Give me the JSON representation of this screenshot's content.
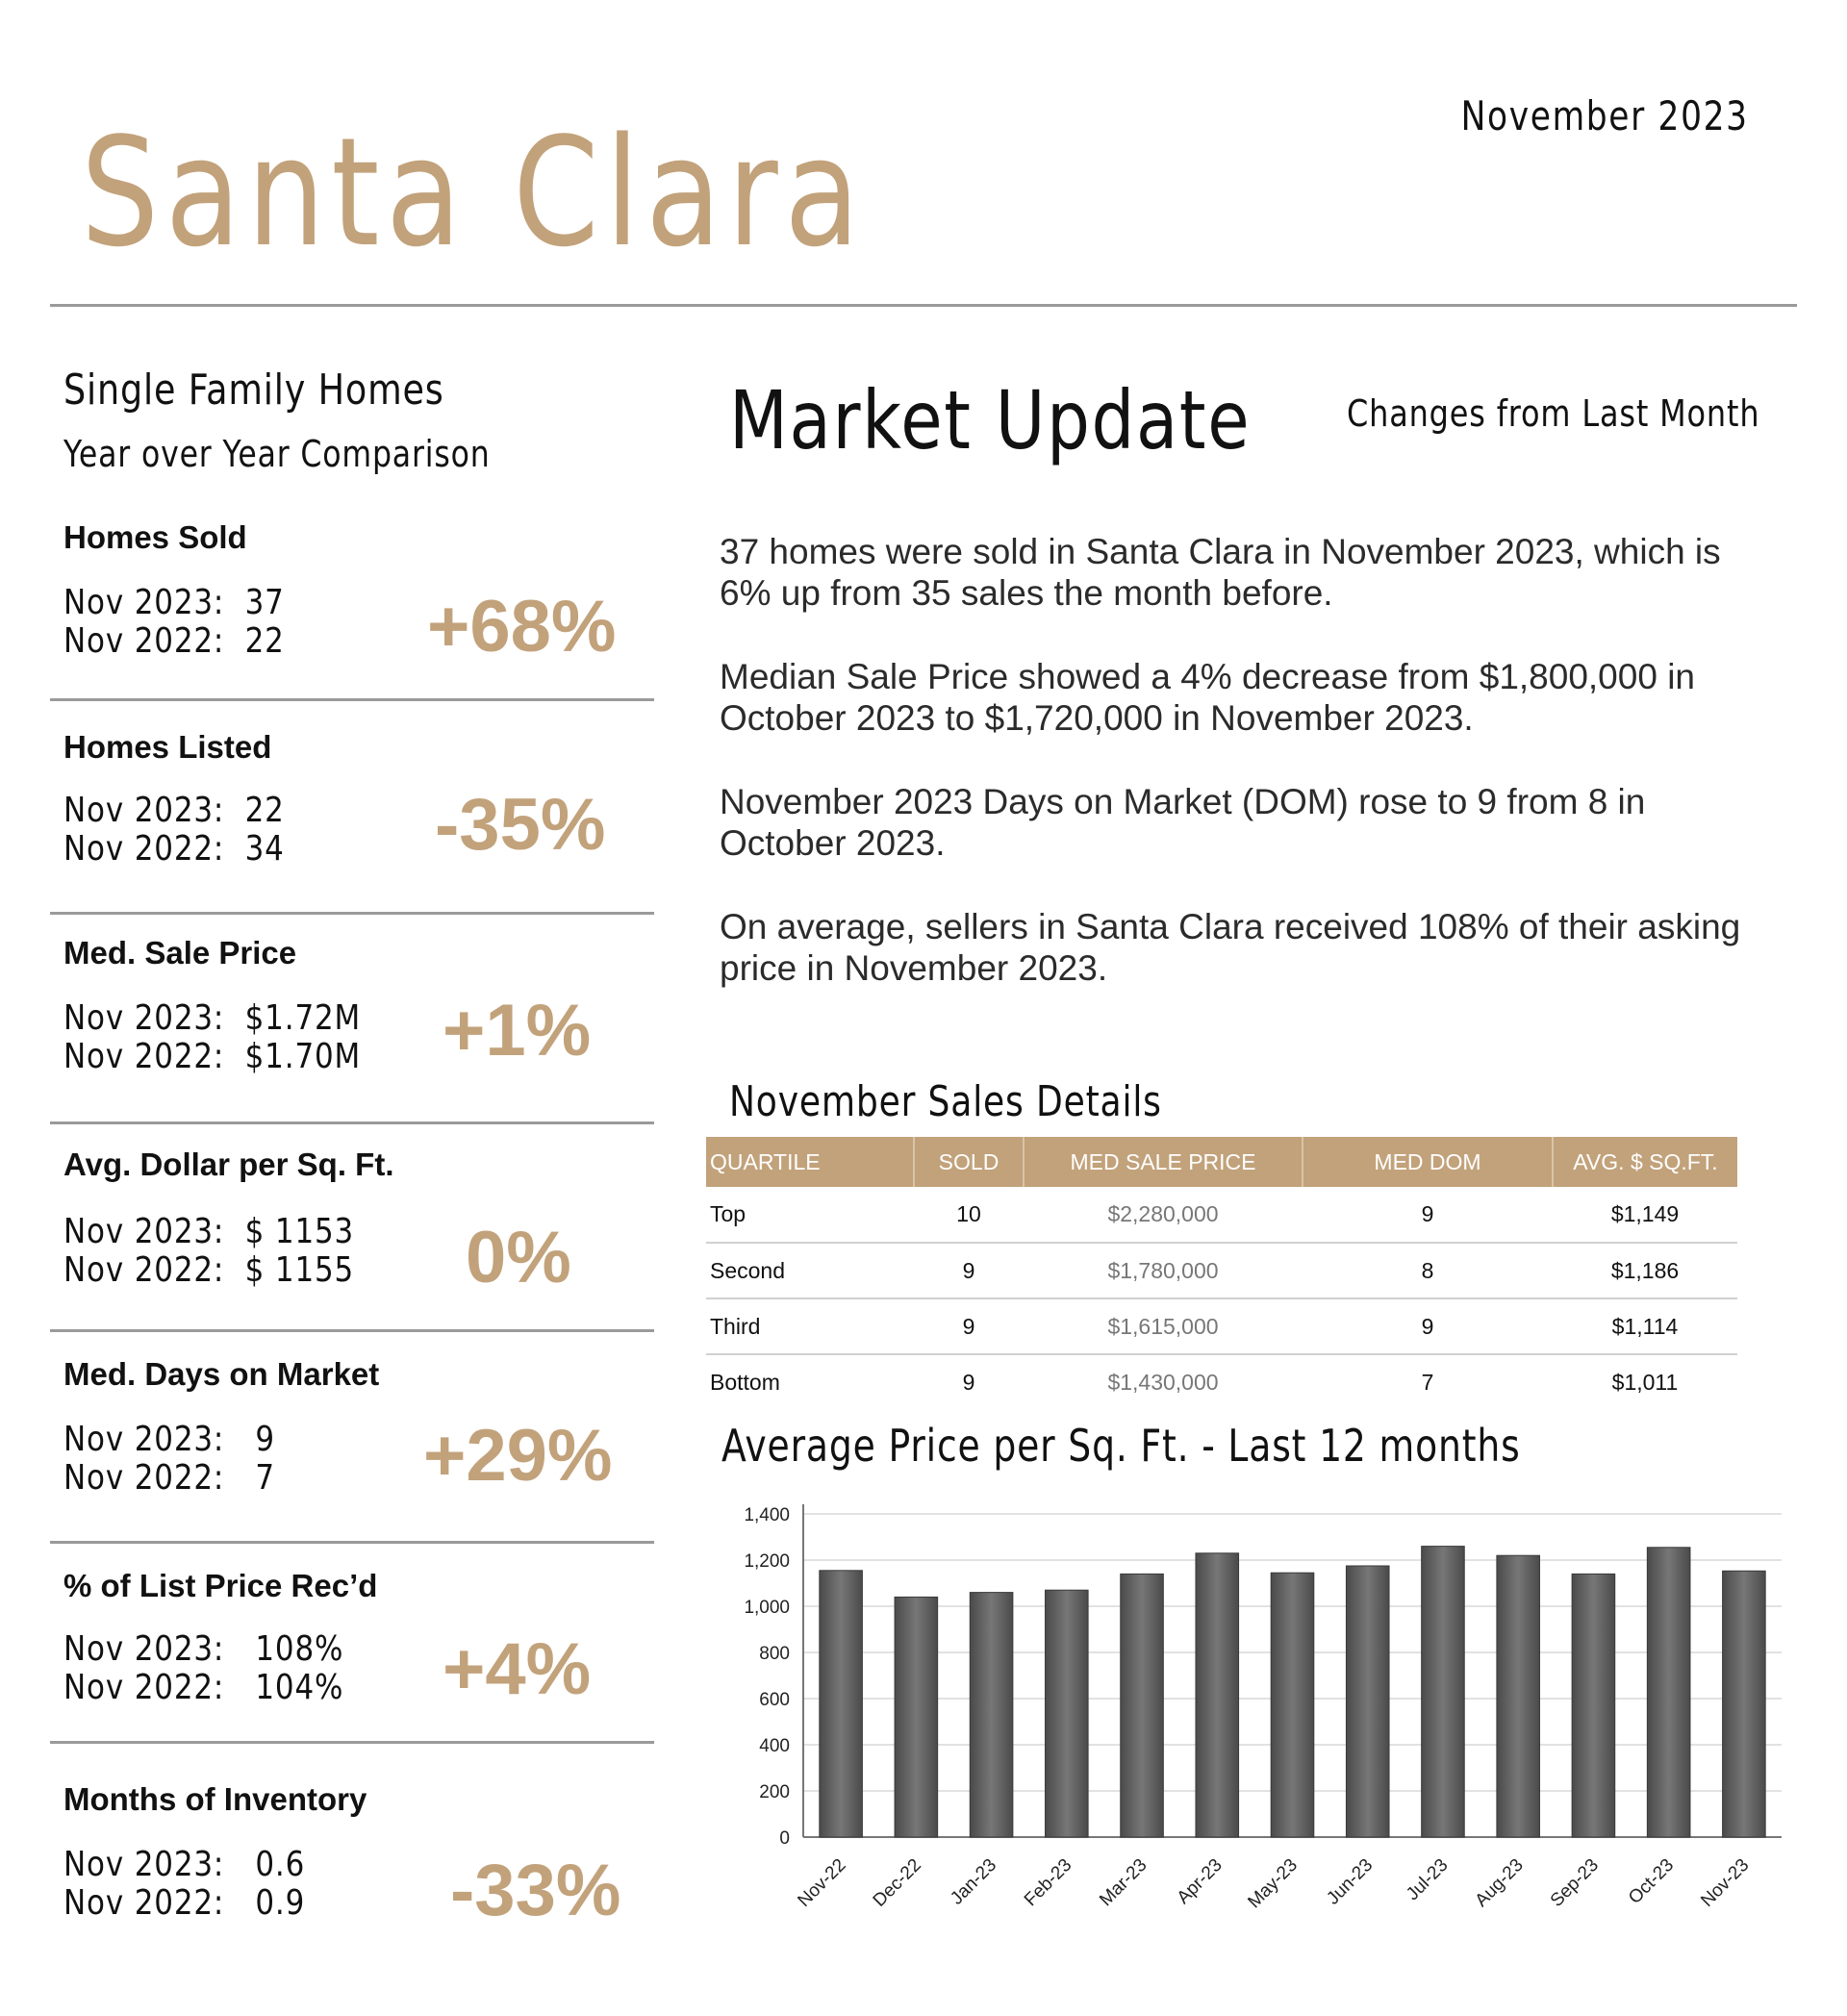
{
  "header": {
    "date": "November 2023",
    "city": "Santa Clara"
  },
  "left": {
    "title": "Single Family Homes",
    "subtitle": "Year over Year Comparison",
    "metrics": [
      {
        "label": "Homes Sold",
        "line1": "Nov 2023:  37",
        "line2": "Nov 2022:  22",
        "change": "+68%"
      },
      {
        "label": "Homes Listed",
        "line1": "Nov 2023:  22",
        "line2": "Nov 2022:  34",
        "change": "-35%"
      },
      {
        "label": "Med. Sale Price",
        "line1": "Nov 2023:  $1.72M",
        "line2": "Nov 2022:  $1.70M",
        "change": "+1%"
      },
      {
        "label": "Avg. Dollar per Sq. Ft.",
        "line1": "Nov 2023:  $ 1153",
        "line2": "Nov 2022:  $ 1155",
        "change": "0%"
      },
      {
        "label": "Med. Days on Market",
        "line1": "Nov 2023:   9",
        "line2": "Nov 2022:   7",
        "change": "+29%"
      },
      {
        "label": "% of List Price Rec’d",
        "line1": "Nov 2023:   108%",
        "line2": "Nov 2022:   104%",
        "change": "+4%"
      },
      {
        "label": "Months of Inventory",
        "line1": "Nov 2023:   0.6",
        "line2": "Nov 2022:   0.9",
        "change": "-33%"
      }
    ]
  },
  "market_update": {
    "title": "Market Update",
    "changes_label": "Changes from Last Month",
    "paragraphs": [
      "37 homes were sold in Santa Clara in November 2023, which is 6% up from 35 sales the month before.",
      "Median Sale Price showed a 4% decrease from $1,800,000 in October 2023 to $1,720,000 in November 2023.",
      "November 2023 Days on Market (DOM) rose to 9 from 8 in October 2023.",
      "On average, sellers in Santa Clara received 108% of their asking price in November 2023."
    ]
  },
  "sales_details": {
    "title": "November Sales Details",
    "headers": [
      "QUARTILE",
      "SOLD",
      "MED SALE PRICE",
      "MED DOM",
      "AVG. $ SQ.FT."
    ],
    "rows": [
      [
        "Top",
        "10",
        "$2,280,000",
        "9",
        "$1,149"
      ],
      [
        "Second",
        "9",
        "$1,780,000",
        "8",
        "$1,186"
      ],
      [
        "Third",
        "9",
        "$1,615,000",
        "9",
        "$1,114"
      ],
      [
        "Bottom",
        "9",
        "$1,430,000",
        "7",
        "$1,011"
      ]
    ]
  },
  "chart_title": "Average Price per Sq. Ft. - Last 12 months",
  "chart_data": {
    "type": "bar",
    "title": "Average Price per Sq. Ft. - Last 12 months",
    "categories": [
      "Nov-22",
      "Dec-22",
      "Jan-23",
      "Feb-23",
      "Mar-23",
      "Apr-23",
      "May-23",
      "Jun-23",
      "Jul-23",
      "Aug-23",
      "Sep-23",
      "Oct-23",
      "Nov-23"
    ],
    "values": [
      1155,
      1040,
      1060,
      1070,
      1140,
      1230,
      1145,
      1175,
      1260,
      1220,
      1140,
      1255,
      1153
    ],
    "ylim": [
      0,
      1400
    ],
    "yticks": [
      "0",
      "200",
      "400",
      "600",
      "800",
      "1,000",
      "1,200",
      "1,400"
    ],
    "grid": true,
    "bar_color": "#666666"
  }
}
